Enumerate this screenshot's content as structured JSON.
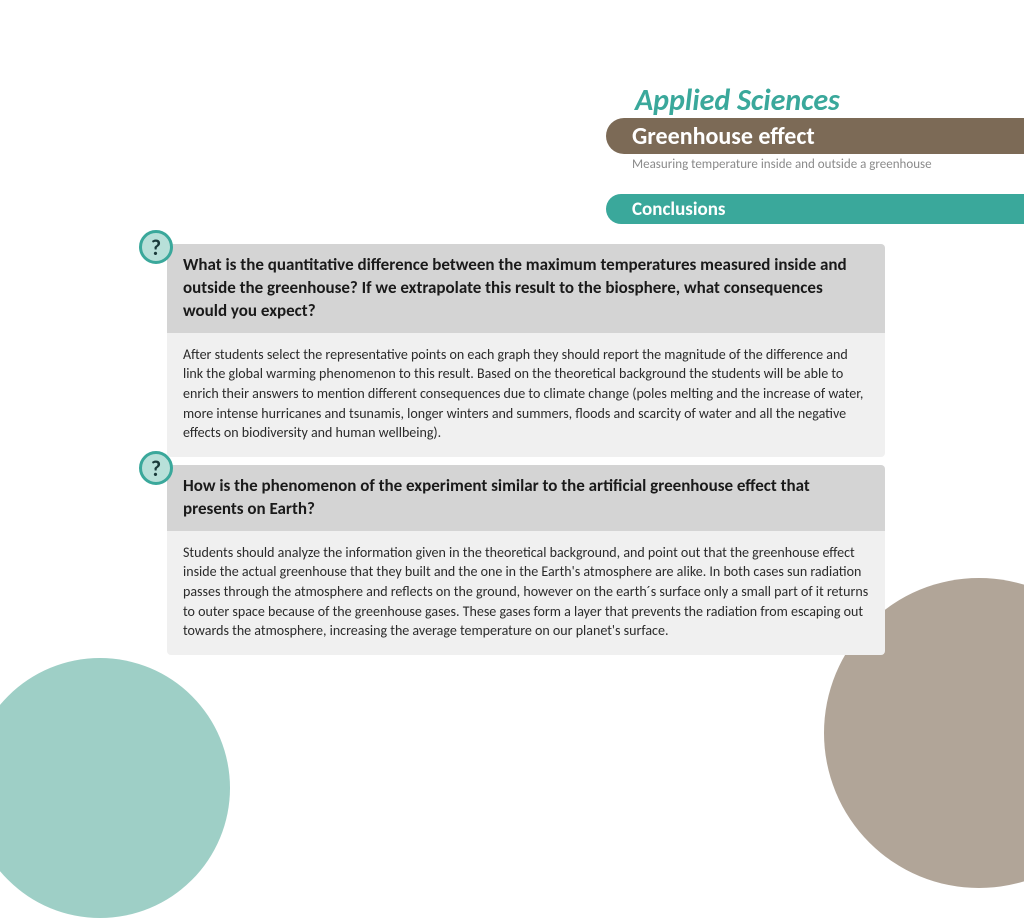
{
  "colors": {
    "teal": "#3aa89b",
    "brown": "#7c6a56",
    "teal_light": "#9ecfc6",
    "brown_light": "#b1a598",
    "question_header_bg": "#d4d4d4",
    "question_body_bg": "#f0f0f0",
    "icon_bg": "#b8e0d9"
  },
  "header": {
    "title": "Applied Sciences",
    "topic": "Greenhouse effect",
    "subtitle": "Measuring temperature inside and outside a greenhouse",
    "section": "Conclusions"
  },
  "questions": [
    {
      "icon": "?",
      "prompt": "What is the quantitative difference between the maximum temperatures measured inside and outside the greenhouse? If we extrapolate this result to the biosphere, what consequences would you expect?",
      "answer": "After students select the representative points on each graph they should report the magnitude of the difference and link the global warming phenomenon to this result. Based on the theoretical background the students will be able to enrich their answers to mention different consequences due to climate change (poles melting and the increase of water, more intense hurricanes and tsunamis, longer winters and summers, floods and scarcity of water and all the negative effects on biodiversity and human wellbeing)."
    },
    {
      "icon": "?",
      "prompt": "How is the phenomenon of the experiment similar to the artificial greenhouse effect that presents on Earth?",
      "answer": "Students should analyze the information given in the theoretical background, and point out that the greenhouse effect inside the actual greenhouse that they built and the one in the Earth's atmosphere are alike. In both cases sun radiation passes through the atmosphere and reflects on the ground, however on the earth´s surface only a small part of it returns to outer space because of the greenhouse gases. These gases form a layer that prevents the radiation from escaping out towards the atmosphere, increasing the average temperature on our planet's surface."
    }
  ]
}
